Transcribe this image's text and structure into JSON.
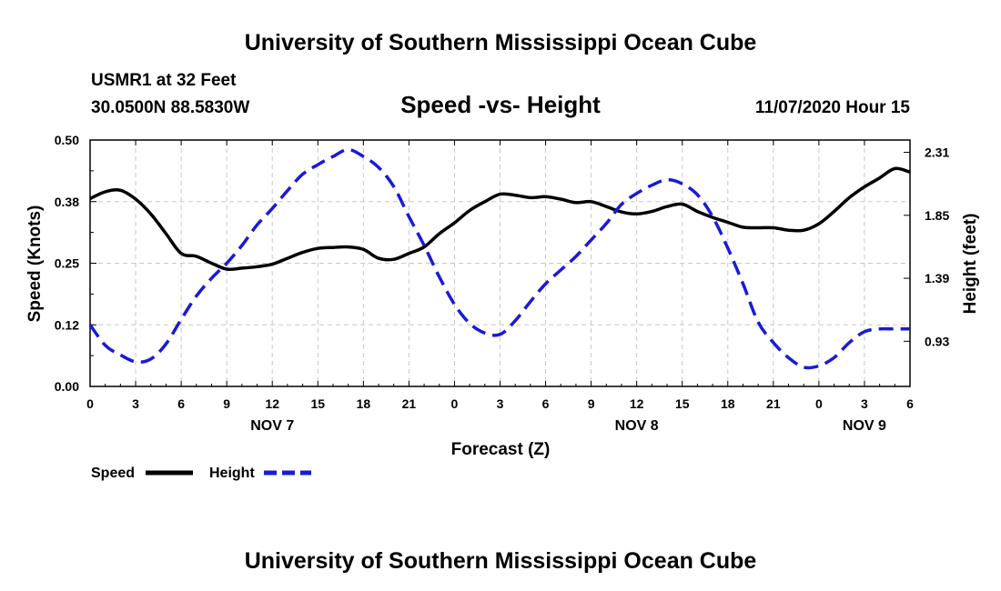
{
  "header": {
    "title": "University of Southern Mississippi Ocean Cube",
    "station": "USMR1 at 32 Feet",
    "coords": "30.0500N 88.5830W",
    "chart_title": "Speed -vs- Height",
    "datetime": "11/07/2020 Hour 15"
  },
  "footer": {
    "title": "University of Southern Mississippi Ocean Cube"
  },
  "colors": {
    "speed": "#000000",
    "height": "#1a1ad6",
    "grid": "#c8c8c8"
  },
  "chart_data": {
    "type": "line",
    "title": "Speed -vs- Height",
    "xlabel": "Forecast (Z)",
    "ylabel": "Speed (Knots)",
    "y2label": "Height (feet)",
    "xlim": [
      0,
      54
    ],
    "ylim": [
      0,
      0.5
    ],
    "y2lim": [
      0.6,
      2.4
    ],
    "x_ticks": [
      0,
      3,
      6,
      9,
      12,
      15,
      18,
      21,
      24,
      27,
      30,
      33,
      36,
      39,
      42,
      45,
      48,
      51,
      54
    ],
    "x_tick_labels": [
      "0",
      "3",
      "6",
      "9",
      "12",
      "15",
      "18",
      "21",
      "0",
      "3",
      "6",
      "9",
      "12",
      "15",
      "18",
      "21",
      "0",
      "3",
      "6"
    ],
    "y_ticks": [
      0,
      0.125,
      0.25,
      0.375,
      0.5
    ],
    "y_tick_labels": [
      "0.00",
      "0.12",
      "0.25",
      "0.38",
      "0.50"
    ],
    "y2_ticks": [
      0.93,
      1.39,
      1.85,
      2.31
    ],
    "y2_tick_labels": [
      "0.93",
      "1.39",
      "1.85",
      "2.31"
    ],
    "day_labels": [
      {
        "x": 12,
        "label": "NOV 7"
      },
      {
        "x": 36,
        "label": "NOV 8"
      },
      {
        "x": 51,
        "label": "NOV 9"
      }
    ],
    "series": [
      {
        "name": "Speed",
        "axis": "left",
        "style": "solid",
        "x": [
          0,
          1,
          2,
          3,
          4,
          5,
          6,
          7,
          8,
          9,
          10,
          11,
          12,
          13,
          14,
          15,
          16,
          17,
          18,
          19,
          20,
          21,
          22,
          23,
          24,
          25,
          26,
          27,
          28,
          29,
          30,
          31,
          32,
          33,
          34,
          35,
          36,
          37,
          38,
          39,
          40,
          41,
          42,
          43,
          44,
          45,
          46,
          47,
          48,
          49,
          50,
          51,
          52,
          53,
          54
        ],
        "values": [
          0.381,
          0.395,
          0.398,
          0.38,
          0.35,
          0.31,
          0.27,
          0.264,
          0.25,
          0.238,
          0.24,
          0.243,
          0.248,
          0.26,
          0.272,
          0.28,
          0.282,
          0.283,
          0.278,
          0.26,
          0.258,
          0.27,
          0.283,
          0.31,
          0.332,
          0.357,
          0.375,
          0.39,
          0.388,
          0.383,
          0.385,
          0.38,
          0.373,
          0.375,
          0.365,
          0.354,
          0.35,
          0.355,
          0.365,
          0.37,
          0.355,
          0.343,
          0.333,
          0.323,
          0.322,
          0.322,
          0.317,
          0.317,
          0.33,
          0.355,
          0.383,
          0.405,
          0.423,
          0.442,
          0.435
        ]
      },
      {
        "name": "Height",
        "axis": "right",
        "style": "dashed",
        "x": [
          0,
          1,
          2,
          3,
          4,
          5,
          6,
          7,
          8,
          9,
          10,
          11,
          12,
          13,
          14,
          15,
          16,
          17,
          18,
          19,
          20,
          21,
          22,
          23,
          24,
          25,
          26,
          27,
          28,
          29,
          30,
          31,
          32,
          33,
          34,
          35,
          36,
          37,
          38,
          39,
          40,
          41,
          42,
          43,
          44,
          45,
          46,
          47,
          48,
          49,
          50,
          51,
          52,
          53,
          54
        ],
        "values": [
          1.05,
          0.9,
          0.83,
          0.78,
          0.8,
          0.91,
          1.09,
          1.26,
          1.39,
          1.5,
          1.63,
          1.78,
          1.9,
          2.03,
          2.15,
          2.22,
          2.28,
          2.33,
          2.28,
          2.2,
          2.06,
          1.84,
          1.63,
          1.4,
          1.2,
          1.06,
          0.99,
          0.98,
          1.08,
          1.22,
          1.35,
          1.45,
          1.55,
          1.67,
          1.79,
          1.93,
          2.01,
          2.07,
          2.11,
          2.08,
          2.0,
          1.84,
          1.61,
          1.35,
          1.07,
          0.92,
          0.81,
          0.74,
          0.75,
          0.81,
          0.92,
          1.0,
          1.02,
          1.02,
          1.02
        ]
      }
    ],
    "legend": [
      {
        "label": "Speed",
        "style": "solid"
      },
      {
        "label": "Height",
        "style": "dashed"
      }
    ]
  }
}
